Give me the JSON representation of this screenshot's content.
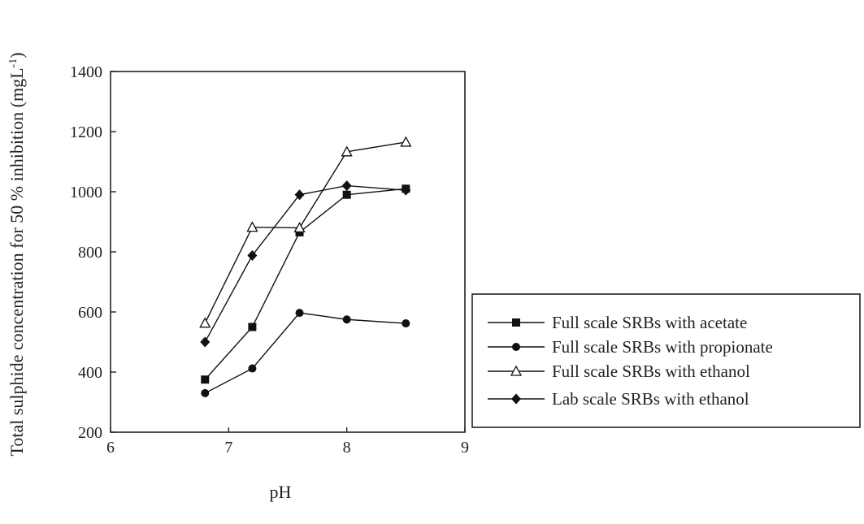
{
  "chart_data": {
    "type": "line",
    "title": "",
    "xlabel": "pH",
    "ylabel": "Total sulphide concentration for 50 % inhibition (mgL",
    "ylabel_sup": "-1",
    "ylabel_close": ")",
    "xlim": [
      6,
      9
    ],
    "ylim": [
      200,
      1400
    ],
    "xticks": [
      6,
      7,
      8,
      9
    ],
    "yticks": [
      200,
      400,
      600,
      800,
      1000,
      1200,
      1400
    ],
    "grid": false,
    "legend_position": "right",
    "series": [
      {
        "name": "Full scale SRBs with acetate",
        "marker": "square",
        "x": [
          6.8,
          7.2,
          7.6,
          8.0,
          8.5
        ],
        "y": [
          375,
          550,
          865,
          990,
          1010
        ]
      },
      {
        "name": "Full scale SRBs with propionate",
        "marker": "circle",
        "x": [
          6.8,
          7.2,
          7.6,
          8.0,
          8.5
        ],
        "y": [
          330,
          412,
          597,
          575,
          562
        ]
      },
      {
        "name": "Full scale SRBs with ethanol",
        "marker": "triangle-open",
        "x": [
          6.8,
          7.2,
          7.6,
          8.0,
          8.5
        ],
        "y": [
          563,
          882,
          880,
          1133,
          1165
        ]
      },
      {
        "name": "Lab scale SRBs with ethanol",
        "marker": "diamond",
        "x": [
          6.8,
          7.2,
          7.6,
          8.0,
          8.5
        ],
        "y": [
          500,
          788,
          990,
          1020,
          1005
        ]
      }
    ]
  }
}
